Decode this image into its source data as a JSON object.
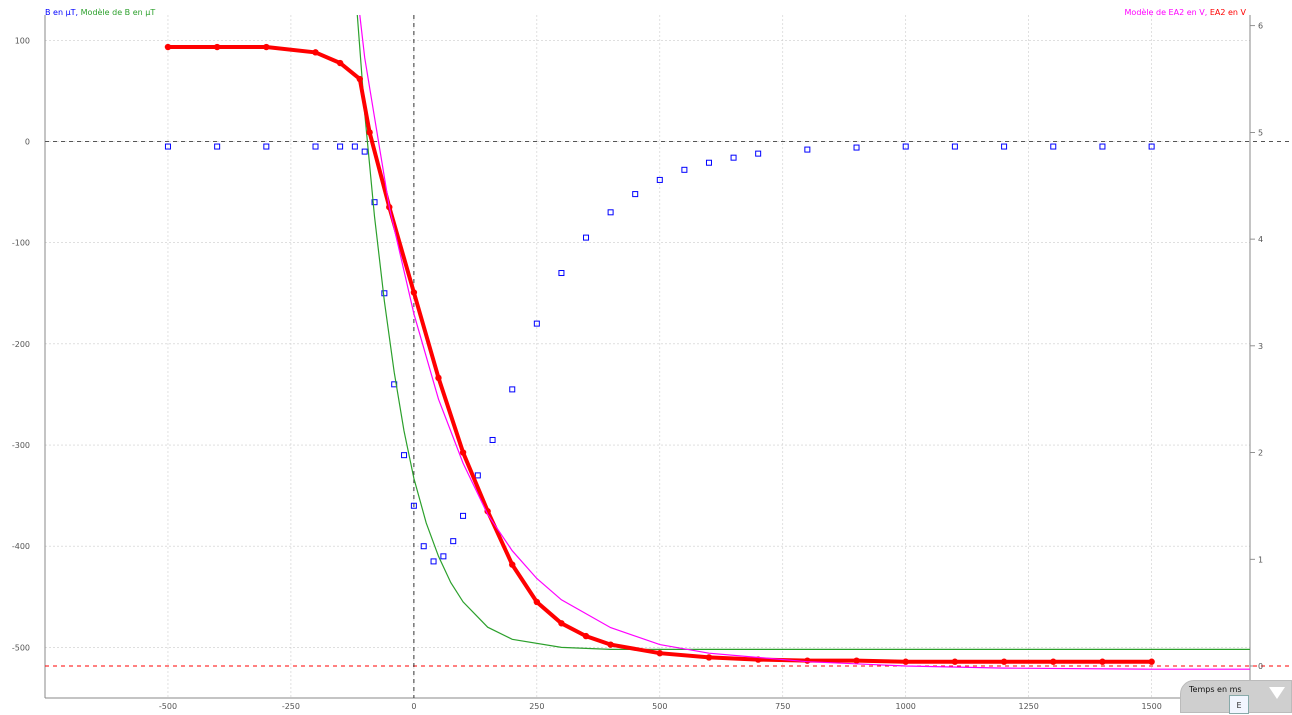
{
  "legend_left": {
    "b_label": "B en µT,",
    "model_b_label": "Modèle de B en µT"
  },
  "legend_right": {
    "model_ea2_label": "Modèle de EA2 en V,",
    "ea2_label": "EA2 en V"
  },
  "widget": {
    "label": "Temps en ms",
    "box_text": "E"
  },
  "colors": {
    "b_points": "#0000ff",
    "model_b": "#2ca02c",
    "ea2": "#ff0000",
    "model_ea2": "#ff00ff",
    "grid": "#cccccc",
    "zero_line": "#555555",
    "ref_line": "#ff0000"
  },
  "chart_data": {
    "type": "scatter",
    "xlabel": "Temps en ms",
    "x_ticks": [
      -500,
      -250,
      0,
      250,
      500,
      750,
      1000,
      1250,
      1500
    ],
    "xlim": [
      -750,
      1700
    ],
    "y_left_ticks": [
      100,
      0,
      -100,
      -200,
      -300,
      -400,
      -500
    ],
    "ylim_left": [
      -550,
      125
    ],
    "y_right_ticks": [
      6,
      5,
      4,
      3,
      2,
      1,
      0
    ],
    "ylim_right": [
      -0.3,
      6.1
    ],
    "grid": true,
    "legend": "top",
    "series": [
      {
        "name": "B en µT",
        "axis": "left",
        "style": "markers",
        "x": [
          -500,
          -400,
          -300,
          -200,
          -150,
          -120,
          -100,
          -80,
          -60,
          -40,
          -20,
          0,
          20,
          40,
          60,
          80,
          100,
          130,
          160,
          200,
          250,
          300,
          350,
          400,
          450,
          500,
          550,
          600,
          650,
          700,
          800,
          900,
          1000,
          1100,
          1200,
          1300,
          1400,
          1500
        ],
        "y": [
          -5,
          -5,
          -5,
          -5,
          -5,
          -5,
          -10,
          -60,
          -150,
          -240,
          -310,
          -360,
          -400,
          -415,
          -410,
          -395,
          -370,
          -330,
          -295,
          -245,
          -180,
          -130,
          -95,
          -70,
          -52,
          -38,
          -28,
          -21,
          -16,
          -12,
          -8,
          -6,
          -5,
          -5,
          -5,
          -5,
          -5,
          -5
        ]
      },
      {
        "name": "Modèle de B en µT",
        "axis": "left",
        "style": "line",
        "x": [
          -115,
          -100,
          -80,
          -60,
          -40,
          -20,
          0,
          25,
          50,
          75,
          100,
          150,
          200,
          300,
          400,
          600,
          800,
          1000,
          1200,
          1500,
          1700
        ],
        "y": [
          125,
          28,
          -74,
          -158,
          -228,
          -286,
          -333,
          -377,
          -410,
          -436,
          -455,
          -480,
          -492,
          -500,
          -502,
          -502,
          -502,
          -502,
          -502,
          -502,
          -502
        ]
      },
      {
        "name": "EA2 en V",
        "axis": "right",
        "style": "markers",
        "x": [
          -500,
          -400,
          -300,
          -200,
          -150,
          -110,
          -90,
          -50,
          0,
          50,
          100,
          150,
          200,
          250,
          300,
          350,
          400,
          500,
          600,
          700,
          800,
          900,
          1000,
          1100,
          1200,
          1300,
          1400,
          1500
        ],
        "y": [
          5.8,
          5.8,
          5.8,
          5.75,
          5.65,
          5.5,
          5.0,
          4.3,
          3.5,
          2.7,
          2.0,
          1.45,
          0.95,
          0.6,
          0.4,
          0.28,
          0.2,
          0.12,
          0.08,
          0.06,
          0.05,
          0.05,
          0.04,
          0.04,
          0.04,
          0.04,
          0.04,
          0.04
        ]
      },
      {
        "name": "Modèle de EA2 en V",
        "axis": "right",
        "style": "line",
        "x": [
          -110,
          -100,
          -50,
          0,
          50,
          100,
          150,
          200,
          250,
          300,
          400,
          500,
          600,
          800,
          1000,
          1200,
          1500,
          1700
        ],
        "y": [
          6.1,
          5.7,
          4.3,
          3.3,
          2.5,
          1.9,
          1.42,
          1.08,
          0.82,
          0.62,
          0.36,
          0.2,
          0.12,
          0.04,
          0.0,
          -0.02,
          -0.03,
          -0.03
        ]
      }
    ],
    "reference_lines": [
      {
        "axis": "left",
        "y": 0,
        "style": "dashed"
      },
      {
        "axis": "right",
        "y": 0,
        "style": "dashed"
      },
      {
        "axis": "x",
        "x": 0,
        "style": "dashed"
      }
    ]
  }
}
